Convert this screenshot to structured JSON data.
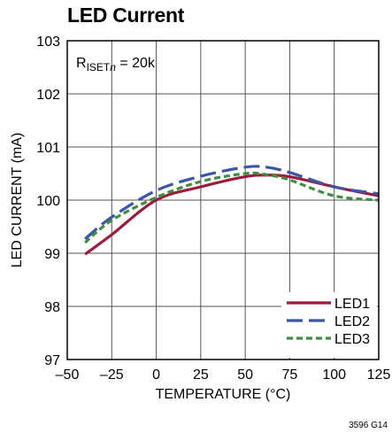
{
  "chart_data": {
    "type": "line",
    "title": "LED Current",
    "xlabel": "TEMPERATURE (°C)",
    "ylabel": "LED CURRENT (mA)",
    "xlim": [
      -50,
      125
    ],
    "ylim": [
      97,
      103
    ],
    "xticks": [
      -50,
      -25,
      0,
      25,
      50,
      75,
      100,
      125
    ],
    "yticks": [
      97,
      98,
      99,
      100,
      101,
      102,
      103
    ],
    "grid": true,
    "legend_position": "bottom-right",
    "annotation": {
      "main": "R",
      "sub": "ISET",
      "sub_italic": "n",
      "rest": " = 20k"
    },
    "figure_id": "3596 G14",
    "series": [
      {
        "name": "LED1",
        "color": "#9b1b3a",
        "dash": "solid",
        "x": [
          -40,
          -25,
          0,
          25,
          50,
          62,
          75,
          100,
          125
        ],
        "y": [
          98.98,
          99.35,
          100.0,
          100.25,
          100.44,
          100.47,
          100.44,
          100.25,
          100.08
        ]
      },
      {
        "name": "LED2",
        "color": "#3a56a5",
        "dash": "long",
        "x": [
          -40,
          -25,
          0,
          25,
          50,
          62,
          75,
          100,
          125
        ],
        "y": [
          99.27,
          99.68,
          100.18,
          100.45,
          100.62,
          100.62,
          100.52,
          100.25,
          100.12
        ]
      },
      {
        "name": "LED3",
        "color": "#3e8e41",
        "dash": "short",
        "x": [
          -40,
          -25,
          0,
          25,
          50,
          62,
          75,
          100,
          125
        ],
        "y": [
          99.2,
          99.62,
          100.05,
          100.35,
          100.5,
          100.48,
          100.38,
          100.08,
          100.0
        ]
      }
    ]
  }
}
